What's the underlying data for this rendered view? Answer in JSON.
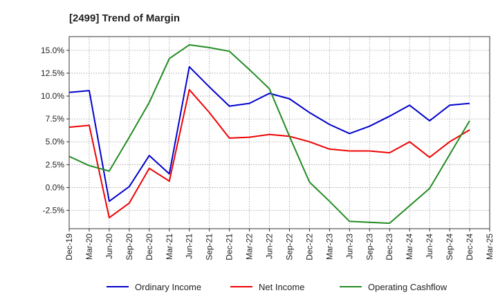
{
  "chart_data": {
    "type": "line",
    "title": "[2499]  Trend of Margin",
    "xlabel": "",
    "ylabel": "",
    "categories": [
      "Dec-19",
      "Mar-20",
      "Jun-20",
      "Sep-20",
      "Dec-20",
      "Mar-21",
      "Jun-21",
      "Sep-21",
      "Dec-21",
      "Mar-22",
      "Jun-22",
      "Sep-22",
      "Dec-22",
      "Mar-23",
      "Jun-23",
      "Sep-23",
      "Dec-23",
      "Mar-24",
      "Jun-24",
      "Sep-24",
      "Dec-24",
      "Mar-25"
    ],
    "ylim": [
      -4.5,
      16.5
    ],
    "yticks": [
      -2.5,
      0.0,
      2.5,
      5.0,
      7.5,
      10.0,
      12.5,
      15.0
    ],
    "ytick_labels": [
      "-2.5%",
      "0.0%",
      "2.5%",
      "5.0%",
      "7.5%",
      "10.0%",
      "12.5%",
      "15.0%"
    ],
    "grid": true,
    "legend_position": "bottom",
    "series": [
      {
        "name": "Ordinary Income",
        "color": "#0000cc",
        "values": [
          10.4,
          10.6,
          -1.5,
          0.1,
          3.5,
          1.5,
          13.2,
          11.0,
          8.9,
          9.2,
          10.3,
          9.7,
          8.2,
          6.9,
          5.9,
          6.7,
          7.8,
          9.0,
          7.3,
          9.0,
          9.2,
          null
        ]
      },
      {
        "name": "Net Income",
        "color": "#ee0000",
        "values": [
          6.6,
          6.8,
          -3.3,
          -1.7,
          2.1,
          0.7,
          10.7,
          8.2,
          5.4,
          5.5,
          5.8,
          5.6,
          5.0,
          4.2,
          4.0,
          4.0,
          3.8,
          5.0,
          3.3,
          5.0,
          6.3,
          null
        ]
      },
      {
        "name": "Operating Cashflow",
        "color": "#228b22",
        "values": [
          3.4,
          2.4,
          1.8,
          5.5,
          9.3,
          14.1,
          15.6,
          15.3,
          14.9,
          12.9,
          10.8,
          5.6,
          0.6,
          -1.5,
          -3.7,
          -3.8,
          -3.9,
          -2.0,
          -0.1,
          3.6,
          7.3,
          null
        ]
      }
    ]
  }
}
